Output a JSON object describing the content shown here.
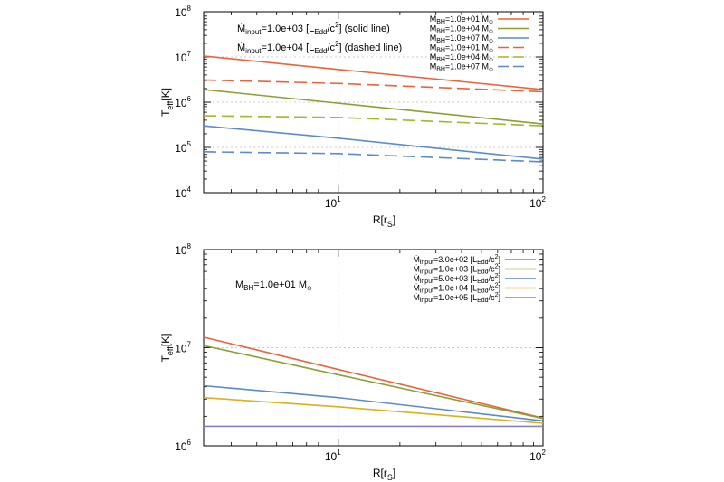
{
  "chart_data": [
    {
      "type": "line",
      "xlabel": "R[r",
      "xlabel_sub": "S",
      "xlabel_suffix": "]",
      "ylabel": "T",
      "ylabel_sub": "eff",
      "ylabel_suffix": "[K]",
      "x_scale": "log",
      "y_scale": "log",
      "xlim": [
        2.2,
        100
      ],
      "ylim": [
        10000,
        100000000
      ],
      "x_ticks": [
        {
          "value": 10,
          "base": "10",
          "exp": "1"
        },
        {
          "value": 100,
          "base": "10",
          "exp": "2"
        }
      ],
      "y_ticks": [
        {
          "value": 10000,
          "base": "10",
          "exp": "4"
        },
        {
          "value": 100000,
          "base": "10",
          "exp": "5"
        },
        {
          "value": 1000000,
          "base": "10",
          "exp": "6"
        },
        {
          "value": 10000000,
          "base": "10",
          "exp": "7"
        },
        {
          "value": 100000000,
          "base": "10",
          "exp": "8"
        }
      ],
      "grid": true,
      "legend_position": "top-right",
      "annotations": [
        {
          "prefix": "Ṁ",
          "sub": "input",
          "text": "=1.0e+03 [L",
          "sub2": "Edd",
          "text2": "/c",
          "sup": "2",
          "text3": "] (solid line)"
        },
        {
          "prefix": "Ṁ",
          "sub": "input",
          "text": "=1.0e+04 [L",
          "sub2": "Edd",
          "text2": "/c",
          "sup": "2",
          "text3": "] (dashed line)"
        }
      ],
      "series": [
        {
          "name_prefix": "M",
          "name_sub": "BH",
          "name_value": "=1.0e+01 M",
          "name_unit_sub": "⊙",
          "color": "#e8643c",
          "dash": "solid",
          "x": [
            2.2,
            10,
            100
          ],
          "y": [
            10500000,
            5300000,
            1900000
          ]
        },
        {
          "name_prefix": "M",
          "name_sub": "BH",
          "name_value": "=1.0e+04 M",
          "name_unit_sub": "⊙",
          "color": "#8aa030",
          "dash": "solid",
          "x": [
            2.2,
            10,
            100
          ],
          "y": [
            1900000,
            950000,
            330000
          ]
        },
        {
          "name_prefix": "M",
          "name_sub": "BH",
          "name_value": "=1.0e+07 M",
          "name_unit_sub": "⊙",
          "color": "#5b8cc8",
          "dash": "solid",
          "x": [
            2.2,
            10,
            100
          ],
          "y": [
            300000,
            160000,
            55000
          ]
        },
        {
          "name_prefix": "M",
          "name_sub": "BH",
          "name_value": "=1.0e+01 M",
          "name_unit_sub": "⊙",
          "color": "#e8643c",
          "dash": "dashed",
          "x": [
            2.2,
            10,
            100
          ],
          "y": [
            3100000,
            2600000,
            1700000
          ]
        },
        {
          "name_prefix": "M",
          "name_sub": "BH",
          "name_value": "=1.0e+04 M",
          "name_unit_sub": "⊙",
          "color": "#a8b42c",
          "dash": "dashed",
          "x": [
            2.2,
            10,
            100
          ],
          "y": [
            500000,
            460000,
            300000
          ]
        },
        {
          "name_prefix": "M",
          "name_sub": "BH",
          "name_value": "=1.0e+07 M",
          "name_unit_sub": "⊙",
          "color": "#5b8cc8",
          "dash": "dashed",
          "x": [
            2.2,
            10,
            100
          ],
          "y": [
            80000,
            73000,
            48000
          ]
        }
      ]
    },
    {
      "type": "line",
      "xlabel": "R[r",
      "xlabel_sub": "S",
      "xlabel_suffix": "]",
      "ylabel": "T",
      "ylabel_sub": "eff",
      "ylabel_suffix": "[K]",
      "x_scale": "log",
      "y_scale": "log",
      "xlim": [
        2.2,
        100
      ],
      "ylim": [
        1000000,
        100000000
      ],
      "x_ticks": [
        {
          "value": 10,
          "base": "10",
          "exp": "1"
        },
        {
          "value": 100,
          "base": "10",
          "exp": "2"
        }
      ],
      "y_ticks": [
        {
          "value": 1000000,
          "base": "10",
          "exp": "6"
        },
        {
          "value": 10000000,
          "base": "10",
          "exp": "7"
        },
        {
          "value": 100000000,
          "base": "10",
          "exp": "8"
        }
      ],
      "grid": true,
      "legend_position": "top-right",
      "annotations": [
        {
          "prefix": "M",
          "sub": "BH",
          "text": "=1.0e+01 M",
          "unit_sub": "⊙"
        }
      ],
      "series": [
        {
          "name_prefix": "Ṁ",
          "name_sub": "input",
          "name_value": "=3.0e+02 [L",
          "name_sub2": "Edd",
          "name_tail": "/c",
          "name_sup": "2",
          "name_end": "]",
          "color": "#e8643c",
          "dash": "solid",
          "x": [
            2.2,
            10,
            100
          ],
          "y": [
            12800000,
            6000000,
            1920000
          ]
        },
        {
          "name_prefix": "Ṁ",
          "name_sub": "input",
          "name_value": "=1.0e+03 [L",
          "name_sub2": "Edd",
          "name_tail": "/c",
          "name_sup": "2",
          "name_end": "]",
          "color": "#8aa030",
          "dash": "solid",
          "x": [
            2.2,
            10,
            100
          ],
          "y": [
            10500000,
            5300000,
            1900000
          ]
        },
        {
          "name_prefix": "Ṁ",
          "name_sub": "input",
          "name_value": "=5.0e+03 [L",
          "name_sub2": "Edd",
          "name_tail": "/c",
          "name_sup": "2",
          "name_end": "]",
          "color": "#5b8cc8",
          "dash": "solid",
          "x": [
            2.2,
            10,
            100
          ],
          "y": [
            4100000,
            3100000,
            1800000
          ]
        },
        {
          "name_prefix": "Ṁ",
          "name_sub": "input",
          "name_value": "=1.0e+04 [L",
          "name_sub2": "Edd",
          "name_tail": "/c",
          "name_sup": "2",
          "name_end": "]",
          "color": "#d8b020",
          "dash": "solid",
          "x": [
            2.2,
            10,
            100
          ],
          "y": [
            3100000,
            2500000,
            1700000
          ]
        },
        {
          "name_prefix": "Ṁ",
          "name_sub": "input",
          "name_value": "=1.0e+05 [L",
          "name_sub2": "Edd",
          "name_tail": "/c",
          "name_sup": "2",
          "name_end": "]",
          "color": "#8c7fc0",
          "dash": "solid",
          "x": [
            2.2,
            10,
            100
          ],
          "y": [
            1580000,
            1580000,
            1580000
          ]
        }
      ]
    }
  ]
}
